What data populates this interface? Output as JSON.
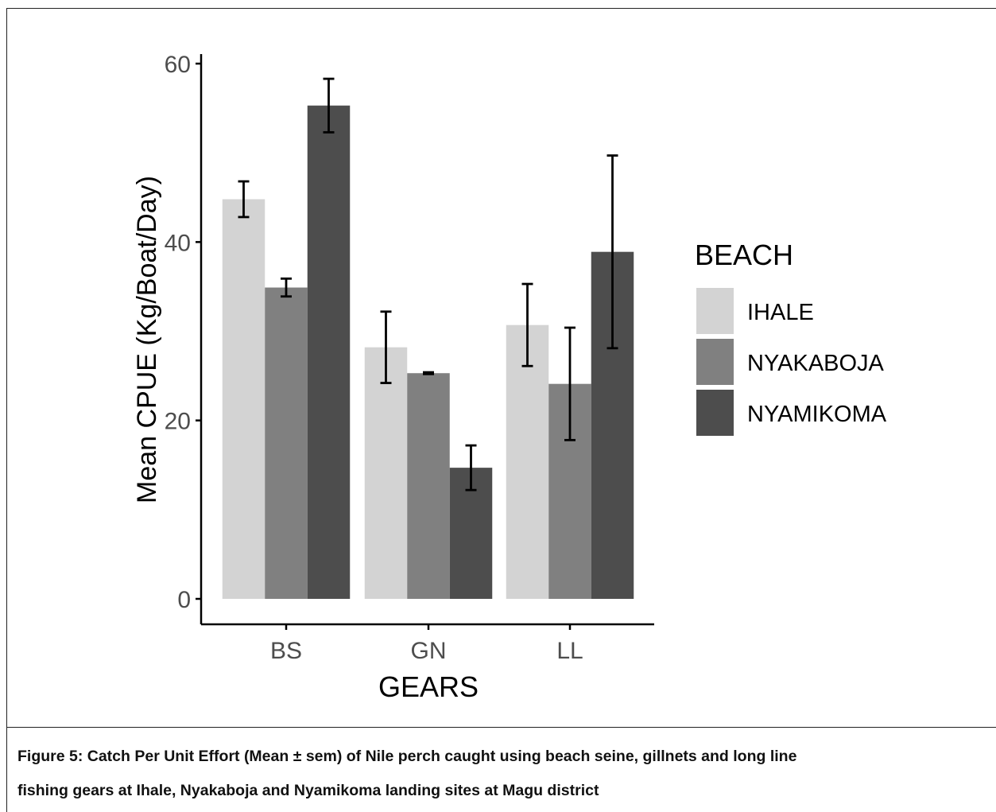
{
  "chart_data": {
    "type": "bar",
    "xlabel": "GEARS",
    "ylabel": "Mean CPUE (Kg/Boat/Day)",
    "categories": [
      "BS",
      "GN",
      "LL"
    ],
    "ylim": [
      0,
      60
    ],
    "yticks": [
      0,
      20,
      40,
      60
    ],
    "legend_title": "BEACH",
    "legend_position": "right",
    "grid": false,
    "series": [
      {
        "name": "IHALE",
        "color": "#d3d3d3",
        "values": [
          44.8,
          28.2,
          30.7
        ],
        "errors": [
          2.0,
          4.0,
          4.6
        ]
      },
      {
        "name": "NYAKABOJA",
        "color": "#808080",
        "values": [
          34.9,
          25.3,
          24.1
        ],
        "errors": [
          1.0,
          0.1,
          6.3
        ]
      },
      {
        "name": "NYAMIKOMA",
        "color": "#4d4d4d",
        "values": [
          55.3,
          14.7,
          38.9
        ],
        "errors": [
          3.0,
          2.5,
          10.8
        ]
      }
    ]
  },
  "caption": {
    "line1": "Figure 5: Catch Per Unit Effort (Mean ± sem) of Nile perch caught using beach seine, gillnets and long line",
    "line2": "fishing gears at Ihale, Nyakaboja and Nyamikoma landing sites at Magu district"
  }
}
